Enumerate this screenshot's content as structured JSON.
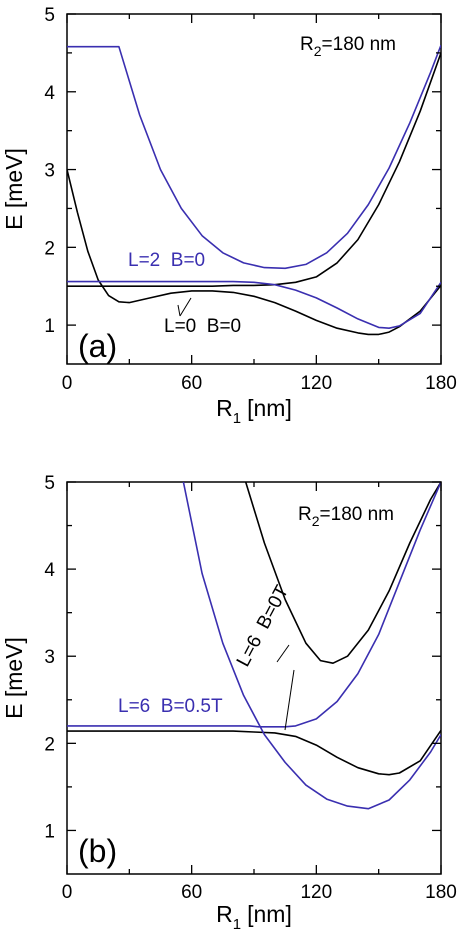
{
  "colors": {
    "black": "#000000",
    "blue": "#3a2fb0"
  },
  "chart_data": [
    {
      "type": "line",
      "panel": "(a)",
      "xlabel": "R",
      "xlabel_sub": "1",
      "xlabel_unit": "[nm]",
      "ylabel": "E [meV]",
      "xlim": [
        0,
        180
      ],
      "ylim": [
        0.5,
        5
      ],
      "xticks": [
        0,
        60,
        120,
        180
      ],
      "yticks": [
        1,
        2,
        3,
        4,
        5
      ],
      "annotation_r2": {
        "prefix": "R",
        "sub": "2",
        "suffix": "=180 nm"
      },
      "labels": [
        {
          "text": "L=2  B=0",
          "color": "blue"
        },
        {
          "text": "L=0  B=0",
          "color": "black"
        }
      ],
      "series": [
        {
          "color": "black",
          "x": [
            0,
            5,
            10,
            15,
            20,
            25,
            30,
            40,
            50,
            60,
            70,
            80,
            90,
            100,
            110,
            120,
            130,
            140,
            145,
            150,
            155,
            160,
            170,
            180
          ],
          "y": [
            3.0,
            2.45,
            1.95,
            1.58,
            1.38,
            1.3,
            1.29,
            1.35,
            1.41,
            1.44,
            1.44,
            1.42,
            1.37,
            1.29,
            1.18,
            1.06,
            0.96,
            0.9,
            0.88,
            0.88,
            0.91,
            0.98,
            1.18,
            1.51
          ]
        },
        {
          "color": "black",
          "x": [
            0,
            10,
            20,
            30,
            40,
            50,
            60,
            70,
            80,
            90,
            100,
            110,
            120,
            130,
            140,
            150,
            160,
            170,
            180
          ],
          "y": [
            1.5,
            1.5,
            1.5,
            1.5,
            1.5,
            1.5,
            1.5,
            1.5,
            1.51,
            1.51,
            1.52,
            1.55,
            1.62,
            1.8,
            2.1,
            2.55,
            3.1,
            3.75,
            4.5
          ]
        },
        {
          "color": "blue",
          "x": [
            0,
            25,
            35,
            45,
            55,
            65,
            75,
            85,
            95,
            105,
            115,
            125,
            135,
            145,
            155,
            165,
            175,
            180
          ],
          "y": [
            4.58,
            4.58,
            3.7,
            3.0,
            2.5,
            2.15,
            1.93,
            1.8,
            1.74,
            1.73,
            1.78,
            1.93,
            2.18,
            2.55,
            3.02,
            3.6,
            4.25,
            4.6
          ]
        },
        {
          "color": "blue",
          "x": [
            0,
            20,
            40,
            60,
            80,
            90,
            100,
            110,
            120,
            130,
            140,
            150,
            155,
            160,
            170,
            180
          ],
          "y": [
            1.56,
            1.56,
            1.56,
            1.56,
            1.56,
            1.55,
            1.52,
            1.45,
            1.35,
            1.22,
            1.08,
            0.97,
            0.96,
            0.99,
            1.15,
            1.55
          ]
        }
      ]
    },
    {
      "type": "line",
      "panel": "(b)",
      "xlabel": "R",
      "xlabel_sub": "1",
      "xlabel_unit": "[nm]",
      "ylabel": "E [meV]",
      "xlim": [
        0,
        180
      ],
      "ylim": [
        0.5,
        5
      ],
      "xticks": [
        0,
        60,
        120,
        180
      ],
      "yticks": [
        1,
        2,
        3,
        4,
        5
      ],
      "annotation_r2": {
        "prefix": "R",
        "sub": "2",
        "suffix": "=180 nm"
      },
      "labels": [
        {
          "text": "L=6  B=0.5T",
          "color": "blue"
        },
        {
          "text": "L=6  B=0T",
          "color": "black"
        }
      ],
      "series": [
        {
          "color": "black",
          "x": [
            0,
            20,
            40,
            60,
            80,
            90,
            100,
            110,
            120,
            130,
            140,
            150,
            155,
            160,
            170,
            180
          ],
          "y": [
            2.14,
            2.14,
            2.14,
            2.14,
            2.14,
            2.13,
            2.12,
            2.08,
            1.98,
            1.84,
            1.72,
            1.65,
            1.64,
            1.66,
            1.8,
            2.15
          ]
        },
        {
          "color": "black",
          "x": [
            86,
            95,
            105,
            115,
            122,
            128,
            135,
            145,
            155,
            165,
            175,
            180
          ],
          "y": [
            5.0,
            4.3,
            3.65,
            3.15,
            2.95,
            2.92,
            3.0,
            3.3,
            3.75,
            4.3,
            4.8,
            5.0
          ]
        },
        {
          "color": "blue",
          "x": [
            0,
            20,
            40,
            60,
            80,
            88,
            92,
            100,
            105,
            110,
            120,
            130,
            140,
            150,
            160,
            170,
            180
          ],
          "y": [
            2.2,
            2.2,
            2.2,
            2.2,
            2.2,
            2.2,
            2.19,
            2.19,
            2.19,
            2.2,
            2.28,
            2.48,
            2.8,
            3.25,
            3.85,
            4.45,
            5.0
          ]
        },
        {
          "color": "blue",
          "x": [
            56,
            65,
            75,
            85,
            95,
            105,
            115,
            125,
            135,
            145,
            155,
            165,
            175,
            180
          ],
          "y": [
            5.0,
            3.95,
            3.15,
            2.55,
            2.1,
            1.78,
            1.52,
            1.36,
            1.28,
            1.25,
            1.35,
            1.58,
            1.9,
            2.1
          ]
        }
      ]
    }
  ]
}
